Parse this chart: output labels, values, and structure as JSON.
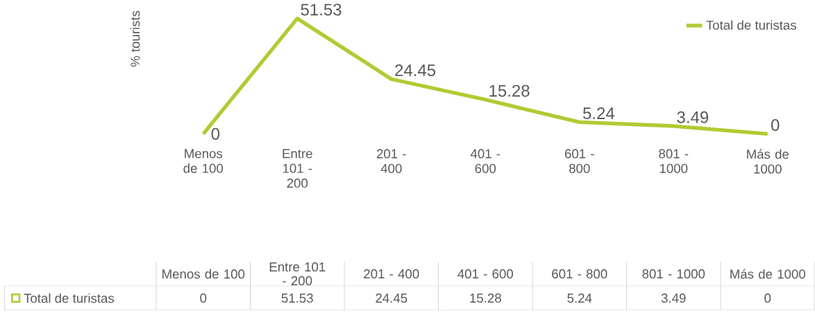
{
  "chart_data": {
    "type": "line",
    "ylabel": "% tourists",
    "categories": [
      "Menos de 100",
      "Entre 101 - 200",
      "201 - 400",
      "401 - 600",
      "601 - 800",
      "801 - 1000",
      "Más de 1000"
    ],
    "series": [
      {
        "name": "Total de turistas",
        "color": "#b4c933",
        "values": [
          0,
          51.53,
          24.45,
          15.28,
          5.24,
          3.49,
          0
        ],
        "value_labels": [
          "0",
          "51.53",
          "24.45",
          "15.28",
          "5.24",
          "3.49",
          "0"
        ]
      }
    ],
    "data_labels": true,
    "legend": "top right"
  }
}
